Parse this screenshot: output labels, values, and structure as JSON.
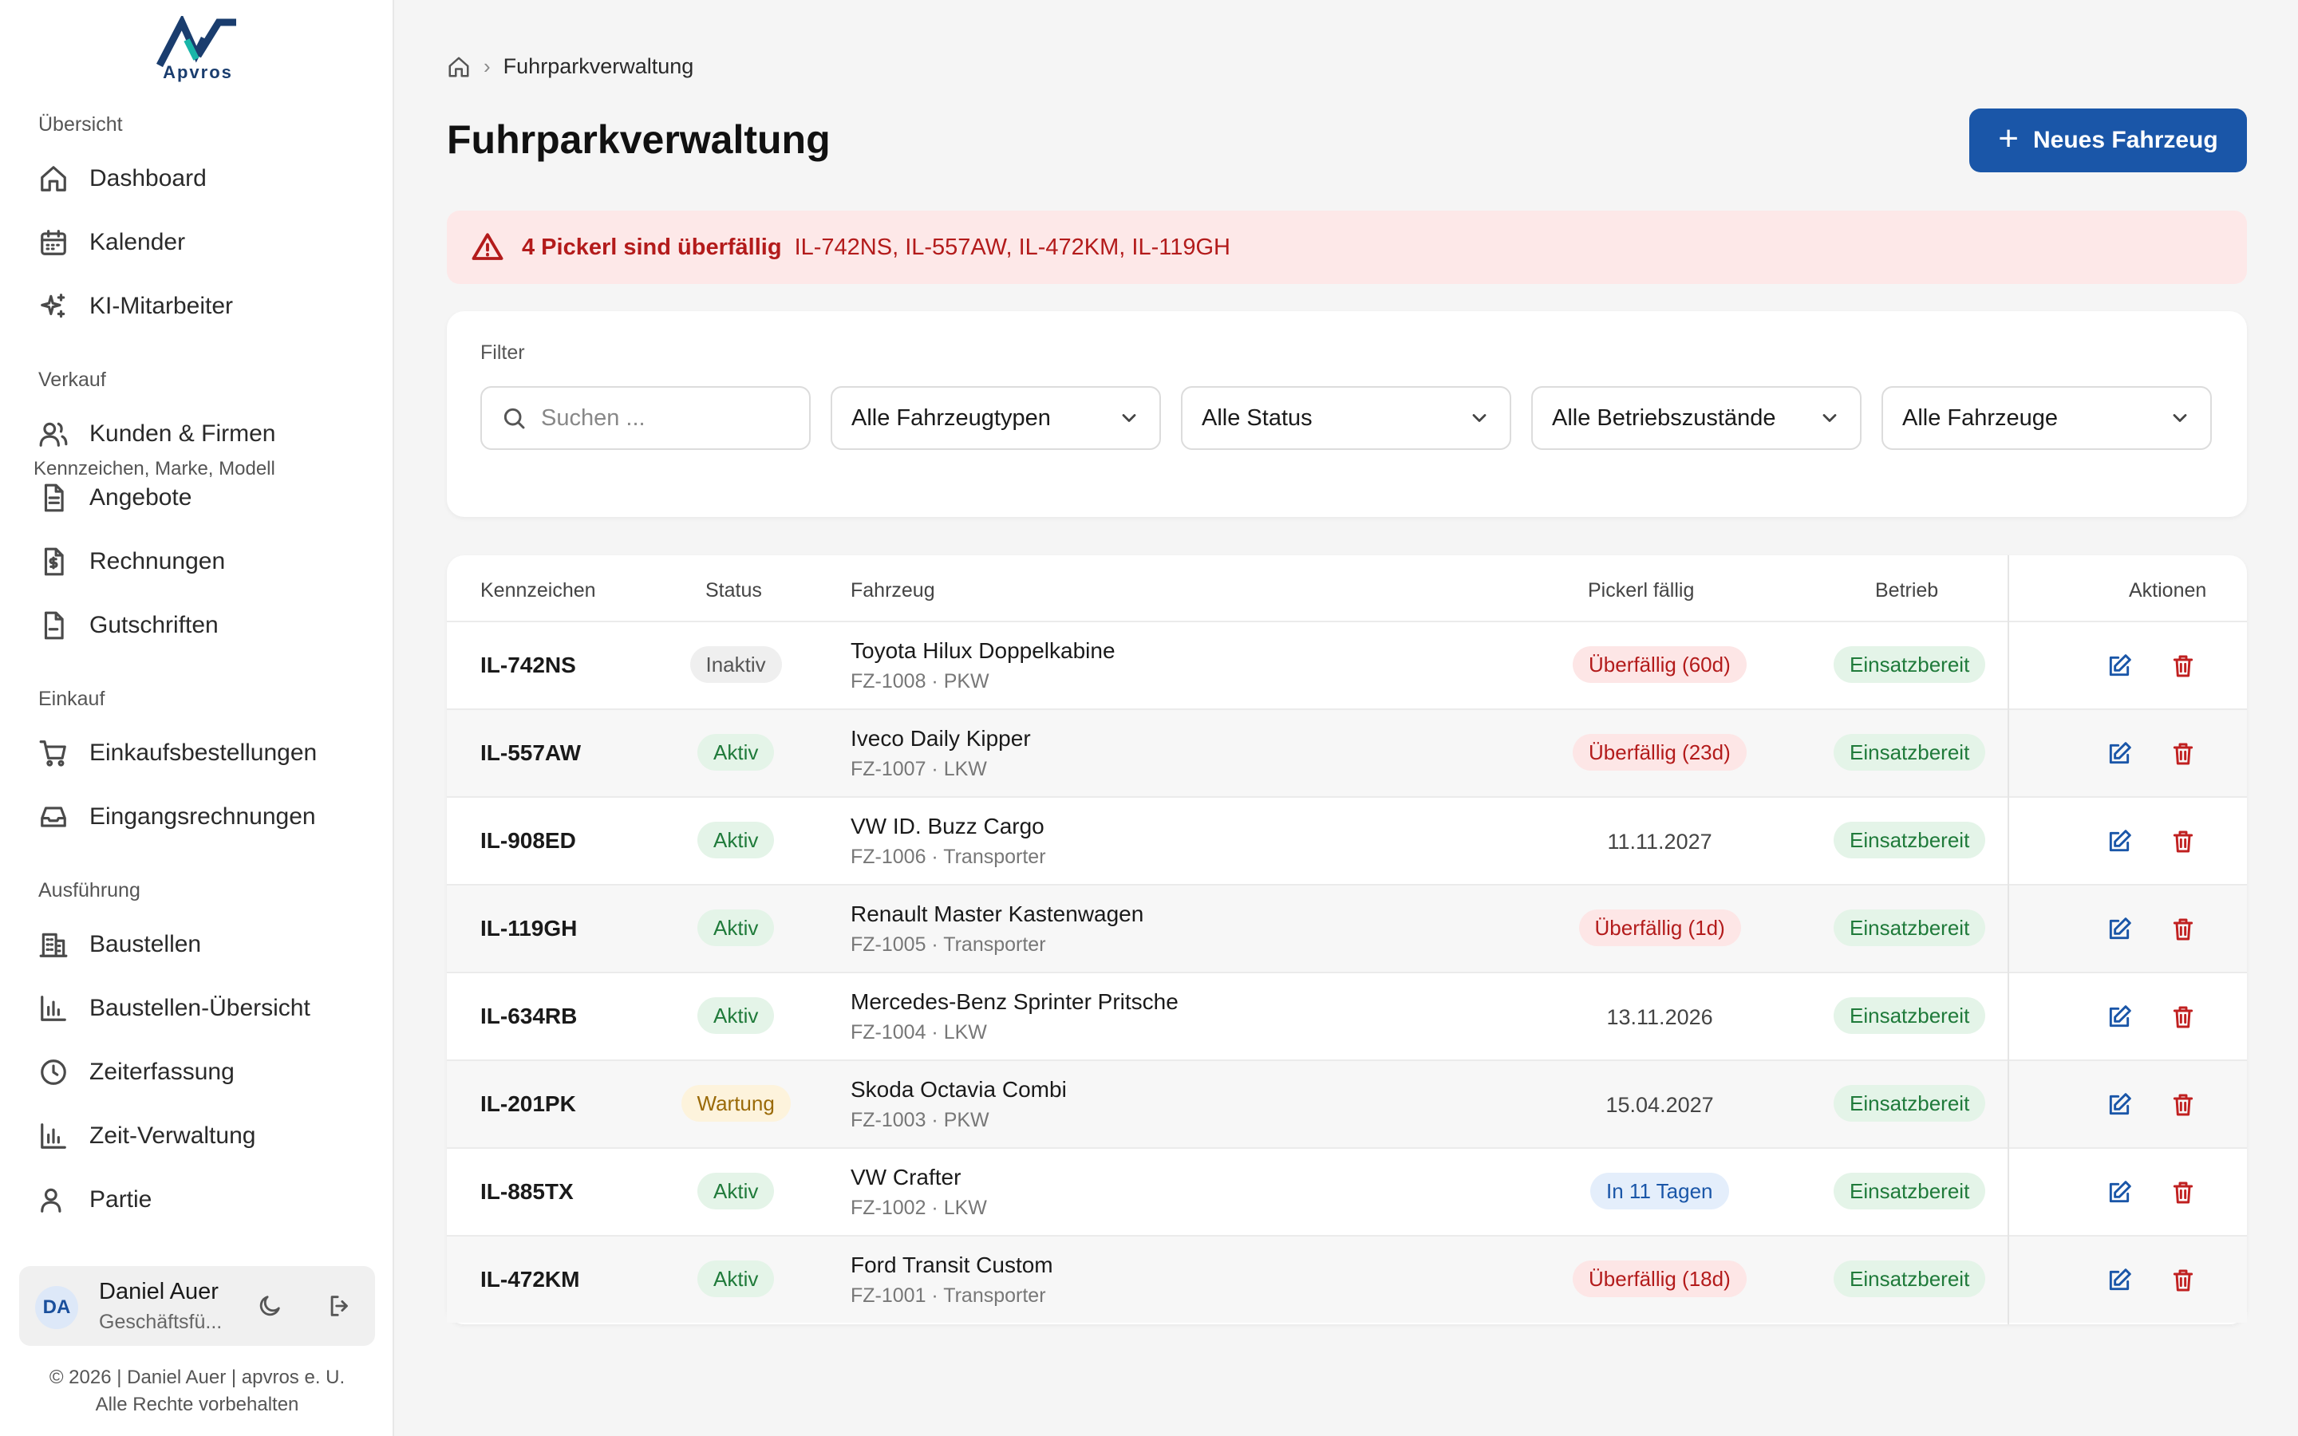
{
  "brand": {
    "logo_text": "Apvros",
    "accent": "#1a56a8"
  },
  "sidebar": {
    "sections": [
      {
        "label": "Übersicht",
        "items": [
          {
            "label": "Dashboard",
            "icon": "home-icon"
          },
          {
            "label": "Kalender",
            "icon": "calendar-icon"
          },
          {
            "label": "KI-Mitarbeiter",
            "icon": "sparkles-icon"
          }
        ]
      },
      {
        "label": "Verkauf",
        "items": [
          {
            "label": "Kunden & Firmen",
            "icon": "users-icon"
          },
          {
            "label": "Angebote",
            "icon": "document-icon"
          },
          {
            "label": "Rechnungen",
            "icon": "invoice-icon"
          },
          {
            "label": "Gutschriften",
            "icon": "file-icon"
          }
        ]
      },
      {
        "label": "Einkauf",
        "items": [
          {
            "label": "Einkaufsbestellungen",
            "icon": "cart-icon"
          },
          {
            "label": "Eingangsrechnungen",
            "icon": "inbox-icon"
          }
        ]
      },
      {
        "label": "Ausführung",
        "items": [
          {
            "label": "Baustellen",
            "icon": "building-icon"
          },
          {
            "label": "Baustellen-Übersicht",
            "icon": "bar-chart-icon"
          },
          {
            "label": "Zeiterfassung",
            "icon": "clock-icon"
          },
          {
            "label": "Zeit-Verwaltung",
            "icon": "bar-chart-icon"
          },
          {
            "label": "Partie",
            "icon": "user-group-icon"
          }
        ]
      }
    ],
    "user": {
      "initials": "DA",
      "name": "Daniel Auer",
      "role": "Geschäftsfü..."
    },
    "footer": {
      "line1": "© 2026 | Daniel Auer | apvros e. U.",
      "line2": "Alle Rechte vorbehalten"
    }
  },
  "breadcrumb": {
    "current": "Fuhrparkverwaltung"
  },
  "header": {
    "title": "Fuhrparkverwaltung",
    "new_button": "Neues Fahrzeug"
  },
  "alert": {
    "title": "4 Pickerl sind überfällig",
    "plates": "IL-742NS, IL-557AW, IL-472KM, IL-119GH"
  },
  "filter": {
    "label": "Filter",
    "search_placeholder": "Suchen ...",
    "search_hint": "Kennzeichen, Marke, Modell",
    "selects": [
      "Alle Fahrzeugtypen",
      "Alle Status",
      "Alle Betriebszustände",
      "Alle Fahrzeuge"
    ]
  },
  "table": {
    "columns": {
      "plate": "Kennzeichen",
      "status": "Status",
      "vehicle": "Fahrzeug",
      "pickerl": "Pickerl fällig",
      "betrieb": "Betrieb",
      "actions": "Aktionen"
    },
    "rows": [
      {
        "plate": "IL-742NS",
        "status": "Inaktiv",
        "status_kind": "inaktiv",
        "vehicle": "Toyota Hilux Doppelkabine",
        "sub": "FZ-1008 · PKW",
        "pickerl": "Überfällig (60d)",
        "pickerl_kind": "over",
        "betrieb": "Einsatzbereit"
      },
      {
        "plate": "IL-557AW",
        "status": "Aktiv",
        "status_kind": "aktiv",
        "vehicle": "Iveco Daily Kipper",
        "sub": "FZ-1007 · LKW",
        "pickerl": "Überfällig (23d)",
        "pickerl_kind": "over",
        "betrieb": "Einsatzbereit"
      },
      {
        "plate": "IL-908ED",
        "status": "Aktiv",
        "status_kind": "aktiv",
        "vehicle": "VW ID. Buzz Cargo",
        "sub": "FZ-1006 · Transporter",
        "pickerl": "11.11.2027",
        "pickerl_kind": "date",
        "betrieb": "Einsatzbereit"
      },
      {
        "plate": "IL-119GH",
        "status": "Aktiv",
        "status_kind": "aktiv",
        "vehicle": "Renault Master Kastenwagen",
        "sub": "FZ-1005 · Transporter",
        "pickerl": "Überfällig (1d)",
        "pickerl_kind": "over",
        "betrieb": "Einsatzbereit"
      },
      {
        "plate": "IL-634RB",
        "status": "Aktiv",
        "status_kind": "aktiv",
        "vehicle": "Mercedes-Benz Sprinter Pritsche",
        "sub": "FZ-1004 · LKW",
        "pickerl": "13.11.2026",
        "pickerl_kind": "date",
        "betrieb": "Einsatzbereit"
      },
      {
        "plate": "IL-201PK",
        "status": "Wartung",
        "status_kind": "wartung",
        "vehicle": "Skoda Octavia Combi",
        "sub": "FZ-1003 · PKW",
        "pickerl": "15.04.2027",
        "pickerl_kind": "date",
        "betrieb": "Einsatzbereit"
      },
      {
        "plate": "IL-885TX",
        "status": "Aktiv",
        "status_kind": "aktiv",
        "vehicle": "VW Crafter",
        "sub": "FZ-1002 · LKW",
        "pickerl": "In 11 Tagen",
        "pickerl_kind": "soon",
        "betrieb": "Einsatzbereit"
      },
      {
        "plate": "IL-472KM",
        "status": "Aktiv",
        "status_kind": "aktiv",
        "vehicle": "Ford Transit Custom",
        "sub": "FZ-1001 · Transporter",
        "pickerl": "Überfällig (18d)",
        "pickerl_kind": "over",
        "betrieb": "Einsatzbereit"
      }
    ]
  }
}
